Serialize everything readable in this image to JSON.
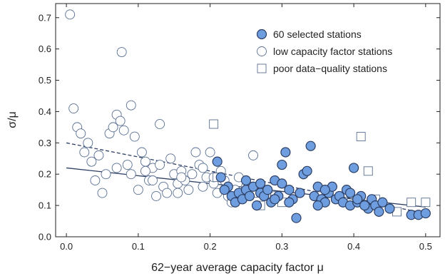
{
  "chart_data": {
    "type": "scatter",
    "title": "",
    "xlabel": "62−year average capacity factor μ",
    "ylabel": "σ/μ",
    "xlim": [
      -0.015,
      0.52
    ],
    "ylim": [
      0.0,
      0.745
    ],
    "x_ticks": [
      0.0,
      0.1,
      0.2,
      0.3,
      0.4,
      0.5
    ],
    "x_tick_labels": [
      "0.0",
      "0.1",
      "0.2",
      "0.3",
      "0.4",
      "0.5"
    ],
    "y_ticks": [
      0.0,
      0.1,
      0.2,
      0.3,
      0.4,
      0.5,
      0.6,
      0.7
    ],
    "y_tick_labels": [
      "0.0",
      "0.1",
      "0.2",
      "0.3",
      "0.4",
      "0.5",
      "0.6",
      "0.7"
    ],
    "grid": false,
    "legend_position": "top-right",
    "colors": {
      "selected_fill": "#6f9ee0",
      "selected_stroke": "#2c3e63",
      "open_stroke": "#5a6f92",
      "line": "#2c3e63"
    },
    "legend": [
      {
        "label": "60 selected stations",
        "marker": "filled-circle"
      },
      {
        "label": "low capacity factor stations",
        "marker": "open-circle"
      },
      {
        "label": "poor data−quality stations",
        "marker": "open-square"
      }
    ],
    "series": [
      {
        "name": "60 selected stations",
        "marker": "filled-circle",
        "points": [
          [
            0.21,
            0.24
          ],
          [
            0.225,
            0.16
          ],
          [
            0.23,
            0.13
          ],
          [
            0.235,
            0.11
          ],
          [
            0.24,
            0.14
          ],
          [
            0.245,
            0.12
          ],
          [
            0.25,
            0.15
          ],
          [
            0.255,
            0.13
          ],
          [
            0.26,
            0.16
          ],
          [
            0.265,
            0.1
          ],
          [
            0.27,
            0.14
          ],
          [
            0.275,
            0.13
          ],
          [
            0.28,
            0.15
          ],
          [
            0.285,
            0.11
          ],
          [
            0.29,
            0.18
          ],
          [
            0.295,
            0.13
          ],
          [
            0.3,
            0.23
          ],
          [
            0.305,
            0.27
          ],
          [
            0.31,
            0.15
          ],
          [
            0.315,
            0.12
          ],
          [
            0.32,
            0.06
          ],
          [
            0.325,
            0.14
          ],
          [
            0.33,
            0.2
          ],
          [
            0.335,
            0.21
          ],
          [
            0.34,
            0.29
          ],
          [
            0.345,
            0.13
          ],
          [
            0.35,
            0.16
          ],
          [
            0.355,
            0.12
          ],
          [
            0.36,
            0.11
          ],
          [
            0.365,
            0.14
          ],
          [
            0.37,
            0.16
          ],
          [
            0.375,
            0.12
          ],
          [
            0.38,
            0.13
          ],
          [
            0.385,
            0.11
          ],
          [
            0.39,
            0.15
          ],
          [
            0.395,
            0.1
          ],
          [
            0.4,
            0.22
          ],
          [
            0.405,
            0.11
          ],
          [
            0.41,
            0.13
          ],
          [
            0.42,
            0.09
          ],
          [
            0.425,
            0.12
          ],
          [
            0.43,
            0.1
          ],
          [
            0.435,
            0.08
          ],
          [
            0.44,
            0.11
          ],
          [
            0.45,
            0.09
          ],
          [
            0.48,
            0.07
          ],
          [
            0.49,
            0.07
          ],
          [
            0.5,
            0.075
          ],
          [
            0.215,
            0.19
          ],
          [
            0.25,
            0.18
          ],
          [
            0.27,
            0.17
          ],
          [
            0.29,
            0.12
          ],
          [
            0.31,
            0.11
          ],
          [
            0.35,
            0.1
          ],
          [
            0.395,
            0.14
          ],
          [
            0.405,
            0.12
          ],
          [
            0.415,
            0.1
          ],
          [
            0.22,
            0.15
          ],
          [
            0.3,
            0.17
          ],
          [
            0.36,
            0.15
          ]
        ]
      },
      {
        "name": "low capacity factor stations",
        "marker": "open-circle",
        "points": [
          [
            0.005,
            0.71
          ],
          [
            0.077,
            0.59
          ],
          [
            0.01,
            0.41
          ],
          [
            0.015,
            0.35
          ],
          [
            0.02,
            0.33
          ],
          [
            0.025,
            0.27
          ],
          [
            0.03,
            0.3
          ],
          [
            0.035,
            0.24
          ],
          [
            0.04,
            0.18
          ],
          [
            0.045,
            0.26
          ],
          [
            0.05,
            0.14
          ],
          [
            0.055,
            0.2
          ],
          [
            0.06,
            0.33
          ],
          [
            0.065,
            0.35
          ],
          [
            0.07,
            0.39
          ],
          [
            0.075,
            0.37
          ],
          [
            0.08,
            0.34
          ],
          [
            0.085,
            0.23
          ],
          [
            0.09,
            0.42
          ],
          [
            0.095,
            0.32
          ],
          [
            0.1,
            0.15
          ],
          [
            0.105,
            0.27
          ],
          [
            0.11,
            0.24
          ],
          [
            0.115,
            0.18
          ],
          [
            0.12,
            0.22
          ],
          [
            0.125,
            0.13
          ],
          [
            0.13,
            0.23
          ],
          [
            0.135,
            0.16
          ],
          [
            0.14,
            0.14
          ],
          [
            0.145,
            0.25
          ],
          [
            0.15,
            0.2
          ],
          [
            0.155,
            0.17
          ],
          [
            0.16,
            0.21
          ],
          [
            0.165,
            0.18
          ],
          [
            0.17,
            0.15
          ],
          [
            0.175,
            0.2
          ],
          [
            0.18,
            0.27
          ],
          [
            0.185,
            0.23
          ],
          [
            0.19,
            0.16
          ],
          [
            0.195,
            0.19
          ],
          [
            0.2,
            0.27
          ],
          [
            0.205,
            0.17
          ],
          [
            0.21,
            0.14
          ],
          [
            0.215,
            0.21
          ],
          [
            0.22,
            0.18
          ],
          [
            0.225,
            0.13
          ],
          [
            0.23,
            0.11
          ],
          [
            0.235,
            0.15
          ],
          [
            0.24,
            0.19
          ],
          [
            0.245,
            0.14
          ],
          [
            0.25,
            0.16
          ],
          [
            0.26,
            0.26
          ],
          [
            0.27,
            0.17
          ],
          [
            0.28,
            0.15
          ],
          [
            0.29,
            0.13
          ],
          [
            0.13,
            0.36
          ],
          [
            0.09,
            0.2
          ],
          [
            0.11,
            0.21
          ],
          [
            0.07,
            0.22
          ],
          [
            0.155,
            0.14
          ],
          [
            0.19,
            0.22
          ],
          [
            0.16,
            0.19
          ],
          [
            0.205,
            0.19
          ],
          [
            0.12,
            0.18
          ]
        ]
      },
      {
        "name": "poor data−quality stations",
        "marker": "open-square",
        "points": [
          [
            0.205,
            0.36
          ],
          [
            0.21,
            0.19
          ],
          [
            0.25,
            0.14
          ],
          [
            0.26,
            0.14
          ],
          [
            0.27,
            0.1
          ],
          [
            0.29,
            0.12
          ],
          [
            0.3,
            0.11
          ],
          [
            0.35,
            0.13
          ],
          [
            0.385,
            0.12
          ],
          [
            0.39,
            0.14
          ],
          [
            0.41,
            0.32
          ],
          [
            0.42,
            0.21
          ],
          [
            0.43,
            0.12
          ],
          [
            0.46,
            0.08
          ],
          [
            0.48,
            0.11
          ],
          [
            0.5,
            0.11
          ]
        ]
      }
    ],
    "fit_lines": [
      {
        "style": "solid",
        "x": [
          0.0,
          0.5
        ],
        "y": [
          0.22,
          0.095
        ]
      },
      {
        "style": "dashed",
        "x": [
          0.0,
          0.5
        ],
        "y": [
          0.3,
          0.075
        ]
      }
    ]
  }
}
